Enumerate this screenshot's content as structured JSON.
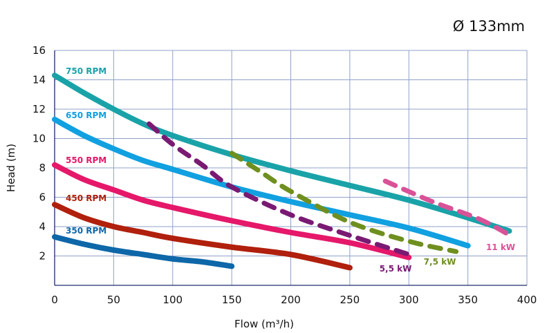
{
  "chart_data": {
    "type": "line",
    "title": "Ø 133mm",
    "xlabel": "Flow (m³/h)",
    "ylabel": "Head (m)",
    "xlim": [
      0,
      400
    ],
    "ylim": [
      0,
      16
    ],
    "xticks": [
      0,
      50,
      100,
      150,
      200,
      250,
      300,
      350,
      400
    ],
    "yticks": [
      2,
      4,
      6,
      8,
      10,
      12,
      14,
      16
    ],
    "grid": true,
    "series": [
      {
        "name": "750 RPM",
        "color": "#19a3a8",
        "style": "solid",
        "x": [
          0,
          25,
          50,
          75,
          100,
          150,
          200,
          250,
          300,
          350,
          385
        ],
        "y": [
          14.3,
          13.1,
          12.0,
          11.0,
          10.2,
          8.9,
          7.8,
          6.8,
          5.8,
          4.6,
          3.7
        ]
      },
      {
        "name": "650 RPM",
        "color": "#11a0e0",
        "style": "solid",
        "x": [
          0,
          25,
          50,
          75,
          100,
          150,
          200,
          250,
          300,
          350
        ],
        "y": [
          11.3,
          10.2,
          9.3,
          8.5,
          7.9,
          6.7,
          5.7,
          4.8,
          3.9,
          2.7
        ]
      },
      {
        "name": "550 RPM",
        "color": "#e5186a",
        "style": "solid",
        "x": [
          0,
          25,
          50,
          75,
          100,
          150,
          200,
          250,
          300
        ],
        "y": [
          8.2,
          7.2,
          6.5,
          5.8,
          5.3,
          4.4,
          3.6,
          2.9,
          1.9
        ]
      },
      {
        "name": "450 RPM",
        "color": "#b0200c",
        "style": "solid",
        "x": [
          0,
          25,
          50,
          75,
          100,
          150,
          200,
          250
        ],
        "y": [
          5.5,
          4.6,
          4.0,
          3.6,
          3.2,
          2.6,
          2.1,
          1.2
        ]
      },
      {
        "name": "350 RPM",
        "color": "#0d67a8",
        "style": "solid",
        "x": [
          0,
          25,
          50,
          75,
          100,
          125,
          150
        ],
        "y": [
          3.3,
          2.8,
          2.4,
          2.1,
          1.8,
          1.6,
          1.3
        ]
      },
      {
        "name": "5,5 kW",
        "color": "#7a1a73",
        "style": "dashed",
        "x": [
          80,
          100,
          125,
          150,
          200,
          250,
          300
        ],
        "y": [
          11.0,
          9.6,
          8.2,
          6.7,
          4.8,
          3.4,
          2.1
        ]
      },
      {
        "name": "7,5 kW",
        "color": "#6f8f1f",
        "style": "dashed",
        "x": [
          150,
          175,
          200,
          250,
          300,
          340
        ],
        "y": [
          9.0,
          7.7,
          6.4,
          4.3,
          3.0,
          2.3
        ]
      },
      {
        "name": "11 kW",
        "color": "#d95298",
        "style": "dashed",
        "x": [
          280,
          320,
          360,
          388
        ],
        "y": [
          7.1,
          5.7,
          4.5,
          3.3
        ]
      }
    ],
    "labels": [
      {
        "text": "750 RPM",
        "color": "#19a3a8"
      },
      {
        "text": "650 RPM",
        "color": "#11a0e0"
      },
      {
        "text": "550 RPM",
        "color": "#e5186a"
      },
      {
        "text": "450 RPM",
        "color": "#b0200c"
      },
      {
        "text": "350 RPM",
        "color": "#0d67a8"
      },
      {
        "text": "5,5 kW",
        "color": "#7a1a73"
      },
      {
        "text": "7,5 kW",
        "color": "#6f8f1f"
      },
      {
        "text": "11 kW",
        "color": "#d95298"
      }
    ]
  }
}
